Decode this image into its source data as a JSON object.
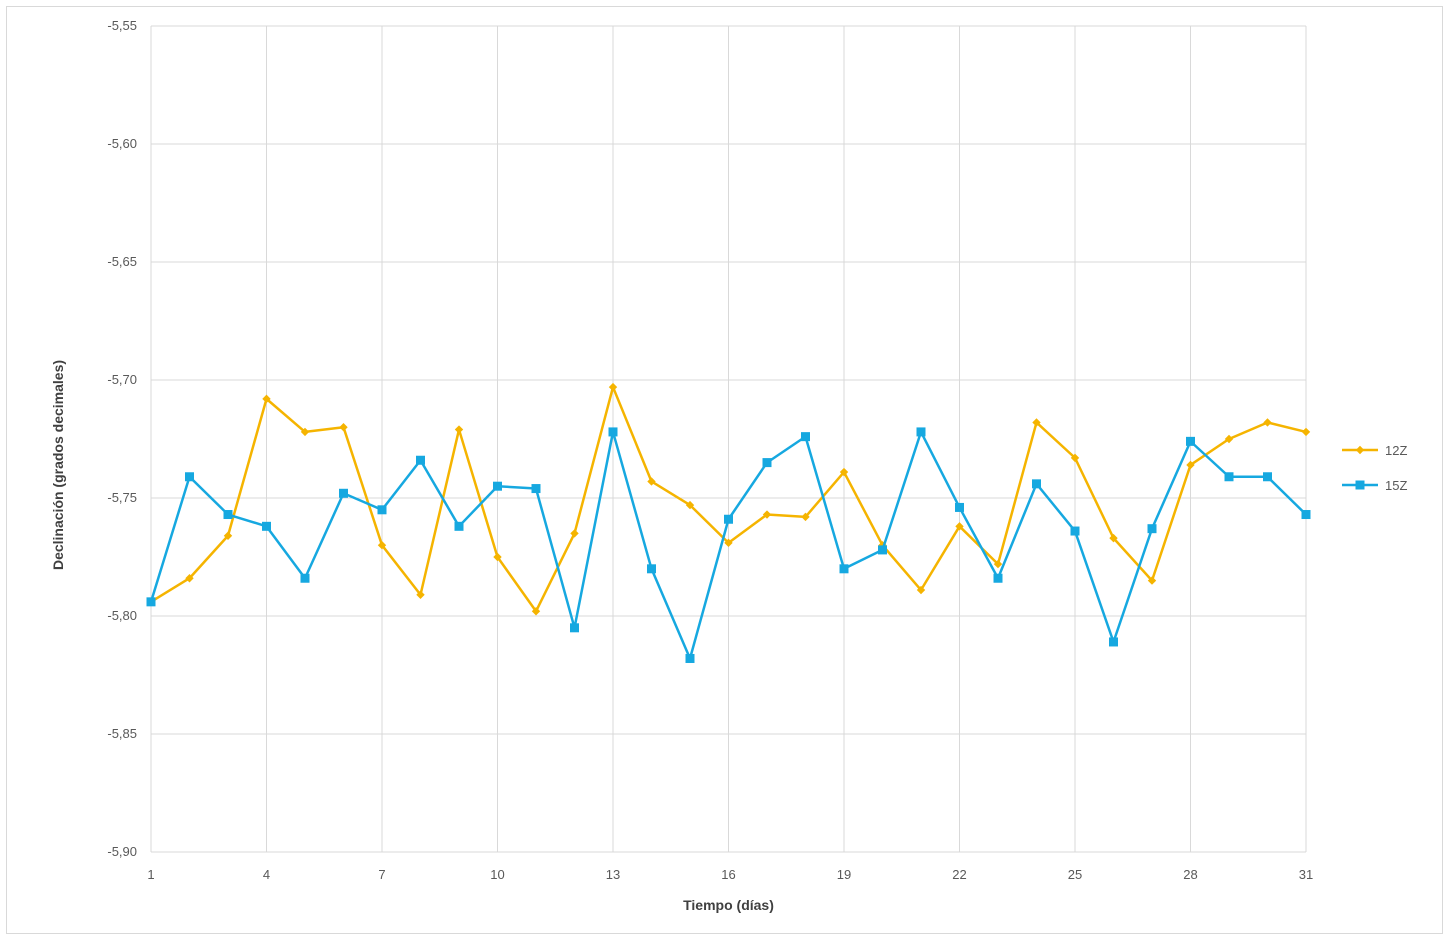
{
  "chart_data": {
    "type": "line",
    "title": "",
    "xlabel": "Tiempo (días)",
    "ylabel": "Declinación  (grados decimales)",
    "x": [
      1,
      2,
      3,
      4,
      5,
      6,
      7,
      8,
      9,
      10,
      11,
      12,
      13,
      14,
      15,
      16,
      17,
      18,
      19,
      20,
      21,
      22,
      23,
      24,
      25,
      26,
      27,
      28,
      29,
      30,
      31
    ],
    "xticks": [
      1,
      4,
      7,
      10,
      13,
      16,
      19,
      22,
      25,
      28,
      31
    ],
    "xlim": [
      1,
      31
    ],
    "ylim": [
      -5.9,
      -5.55
    ],
    "yticks": [
      -5.9,
      -5.85,
      -5.8,
      -5.75,
      -5.7,
      -5.65,
      -5.6,
      -5.55
    ],
    "ytick_labels": [
      "-5,90",
      "-5,85",
      "-5,80",
      "-5,75",
      "-5,70",
      "-5,65",
      "-5,60",
      "-5,55"
    ],
    "grid": true,
    "legend_position": "right",
    "series": [
      {
        "name": "12Z",
        "color": "#f5b400",
        "marker": "diamond",
        "values": [
          -5.794,
          -5.784,
          -5.766,
          -5.708,
          -5.722,
          -5.72,
          -5.77,
          -5.791,
          -5.721,
          -5.775,
          -5.798,
          -5.765,
          -5.703,
          -5.743,
          -5.753,
          -5.769,
          -5.757,
          -5.758,
          -5.739,
          -5.77,
          -5.789,
          -5.762,
          -5.778,
          -5.718,
          -5.733,
          -5.767,
          -5.785,
          -5.736,
          -5.725,
          -5.718,
          -5.722
        ]
      },
      {
        "name": "15Z",
        "color": "#16a8e0",
        "marker": "square",
        "values": [
          -5.794,
          -5.741,
          -5.757,
          -5.762,
          -5.784,
          -5.748,
          -5.755,
          -5.734,
          -5.762,
          -5.745,
          -5.746,
          -5.805,
          -5.722,
          -5.78,
          -5.818,
          -5.759,
          -5.735,
          -5.724,
          -5.78,
          -5.772,
          -5.722,
          -5.754,
          -5.784,
          -5.744,
          -5.764,
          -5.811,
          -5.763,
          -5.726,
          -5.741,
          -5.741,
          -5.757
        ]
      }
    ]
  }
}
